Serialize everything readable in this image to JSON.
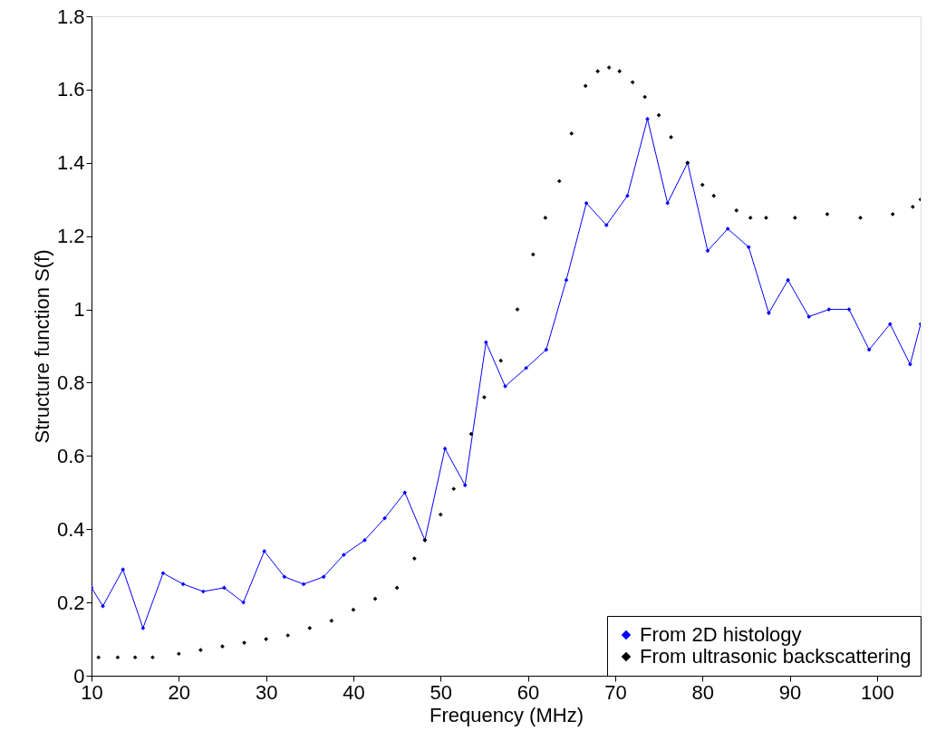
{
  "chart_data": {
    "type": "line",
    "xlabel": "Frequency (MHz)",
    "ylabel": "Structure function S(f)",
    "xlim": [
      10,
      105
    ],
    "xticks": [
      10,
      20,
      30,
      40,
      50,
      60,
      70,
      80,
      90,
      100
    ],
    "ylim": [
      0,
      1.8
    ],
    "yticks": [
      0,
      0.2,
      0.4,
      0.6,
      0.8,
      1,
      1.2,
      1.4,
      1.6,
      1.8
    ],
    "grid": false,
    "legend": "bottom right",
    "series": [
      {
        "name": "From 2D histology",
        "marker": "diamond",
        "color": "#0000ff",
        "x": [
          10,
          11.3,
          13.6,
          15.9,
          18.2,
          20.5,
          22.8,
          25.2,
          27.4,
          29.8,
          32.1,
          34.3,
          36.6,
          38.9,
          41.3,
          43.6,
          45.9,
          48.2,
          50.5,
          52.8,
          55.2,
          57.4,
          59.8,
          62.1,
          64.4,
          66.7,
          69.0,
          71.4,
          73.7,
          76.0,
          78.3,
          80.6,
          82.9,
          85.3,
          87.6,
          89.8,
          92.2,
          94.5,
          96.8,
          99.1,
          101.5,
          103.8,
          105
        ],
        "values": [
          0.24,
          0.19,
          0.29,
          0.13,
          0.28,
          0.25,
          0.23,
          0.24,
          0.2,
          0.34,
          0.27,
          0.25,
          0.27,
          0.33,
          0.37,
          0.43,
          0.5,
          0.37,
          0.62,
          0.52,
          0.91,
          0.79,
          0.84,
          0.89,
          1.08,
          1.29,
          1.23,
          1.31,
          1.52,
          1.29,
          1.4,
          1.16,
          1.22,
          1.17,
          0.99,
          1.08,
          0.98,
          1.0,
          1.0,
          0.89,
          0.96,
          0.85,
          0.96
        ]
      },
      {
        "name": "From ultrasonic backscattering",
        "type": "scatter",
        "marker": "diamond",
        "color": "#000000",
        "x": [
          10.8,
          13,
          15,
          17,
          20,
          22.5,
          25,
          27.5,
          30,
          32.5,
          35,
          37.5,
          40,
          42.5,
          45,
          47,
          48.2,
          50,
          51.5,
          53.5,
          55,
          56.9,
          58.8,
          60.6,
          62,
          63.6,
          65,
          66.6,
          68,
          69.3,
          70.5,
          72,
          73.4,
          75,
          76.4,
          78.3,
          80,
          81.3,
          83.9,
          85.5,
          87.3,
          90.6,
          94.3,
          98.1,
          101.8,
          104.1,
          105
        ],
        "values": [
          0.05,
          0.05,
          0.05,
          0.05,
          0.06,
          0.07,
          0.08,
          0.09,
          0.1,
          0.11,
          0.13,
          0.15,
          0.18,
          0.21,
          0.24,
          0.32,
          0.37,
          0.44,
          0.51,
          0.66,
          0.76,
          0.86,
          1.0,
          1.15,
          1.25,
          1.35,
          1.48,
          1.61,
          1.65,
          1.66,
          1.65,
          1.62,
          1.58,
          1.53,
          1.47,
          1.4,
          1.34,
          1.31,
          1.27,
          1.25,
          1.25,
          1.25,
          1.26,
          1.25,
          1.26,
          1.28,
          1.3
        ]
      }
    ]
  }
}
